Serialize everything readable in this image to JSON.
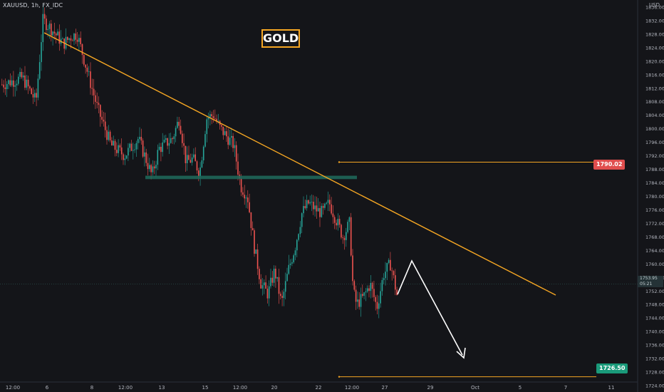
{
  "header": {
    "symbol": "XAUUSD, 1h, FX_IDC",
    "currency": "USD"
  },
  "title_box": "GOLD",
  "price_tags": {
    "resistance": "1790.02",
    "target": "1726.50",
    "last": "1753.95",
    "timer": "05:21"
  },
  "colors": {
    "background": "#141519",
    "trendline": "#f5a623",
    "up": "#26a69a",
    "down": "#ef5350",
    "resistance": "#e04e4e",
    "target": "#1a9a7a"
  },
  "chart_data": {
    "type": "candlestick",
    "ylim": [
      1722,
      1838
    ],
    "y_ticks": [
      1724,
      1728,
      1732,
      1736,
      1740,
      1744,
      1748,
      1752,
      1756,
      1760,
      1764,
      1768,
      1772,
      1776,
      1780,
      1784,
      1788,
      1792,
      1796,
      1800,
      1804,
      1808,
      1812,
      1816,
      1820,
      1824,
      1828,
      1832,
      1836
    ],
    "x_ticks": [
      "12:00",
      "6",
      "8",
      "12:00",
      "13",
      "15",
      "12:00",
      "20",
      "22",
      "12:00",
      "27",
      "29",
      "Oct",
      "5",
      "7",
      "11"
    ],
    "price_path": [
      [
        0,
        1813
      ],
      [
        3,
        1815
      ],
      [
        5,
        1808
      ],
      [
        6,
        1832
      ],
      [
        7,
        1830
      ],
      [
        9,
        1825
      ],
      [
        10,
        1827
      ],
      [
        11,
        1828
      ],
      [
        14,
        1806
      ],
      [
        16,
        1795
      ],
      [
        18,
        1792
      ],
      [
        20,
        1797
      ],
      [
        22,
        1786
      ],
      [
        23,
        1794
      ],
      [
        25,
        1797
      ],
      [
        26,
        1803
      ],
      [
        27,
        1790
      ],
      [
        28,
        1791
      ],
      [
        29,
        1787
      ],
      [
        30,
        1803
      ],
      [
        31,
        1804
      ],
      [
        32,
        1800
      ],
      [
        34,
        1795
      ],
      [
        35,
        1783
      ],
      [
        36,
        1780
      ],
      [
        37,
        1765
      ],
      [
        38,
        1754
      ],
      [
        39,
        1751
      ],
      [
        40,
        1758
      ],
      [
        41,
        1748
      ],
      [
        42,
        1758
      ],
      [
        43,
        1765
      ],
      [
        44,
        1775
      ],
      [
        45,
        1778
      ],
      [
        46,
        1776
      ],
      [
        47,
        1775
      ],
      [
        48,
        1778
      ],
      [
        49,
        1773
      ],
      [
        50,
        1768
      ],
      [
        51,
        1772
      ],
      [
        51.5,
        1752
      ],
      [
        52,
        1748
      ],
      [
        53,
        1750
      ],
      [
        54,
        1754
      ],
      [
        55,
        1747
      ],
      [
        56,
        1757
      ],
      [
        57,
        1760
      ],
      [
        58,
        1750
      ]
    ],
    "annotations": {
      "trendline": [
        [
          5.5,
          1832
        ],
        [
          53.6,
          1749
        ]
      ],
      "support_zone": [
        1785,
        1786
      ],
      "resistance_level": 1790.02,
      "target_level": 1726.5,
      "forecast_path": [
        [
          58.2,
          1751
        ],
        [
          59.4,
          1760.5
        ],
        [
          62.2,
          1729.5
        ]
      ]
    }
  }
}
